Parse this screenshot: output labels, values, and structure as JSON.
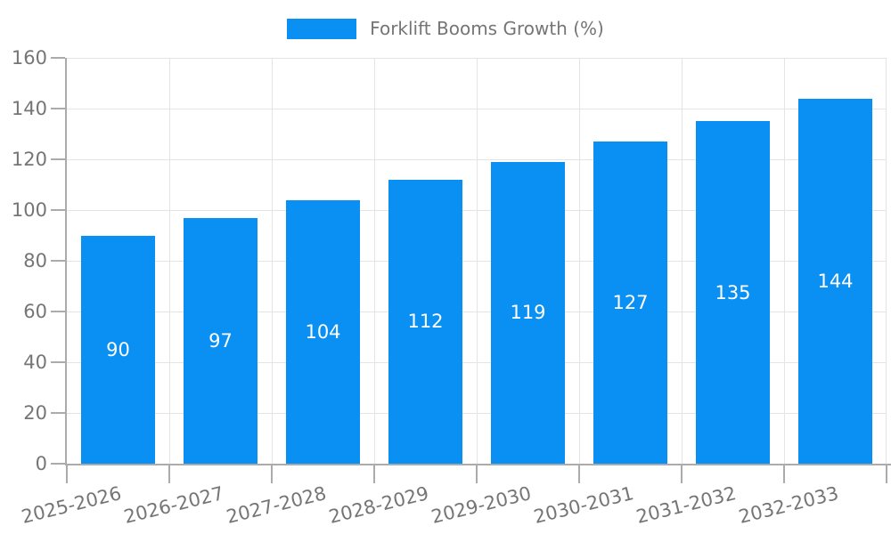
{
  "chart_data": {
    "type": "bar",
    "title": "",
    "legend": {
      "position": "top",
      "label": "Forklift Booms Growth (%)"
    },
    "categories": [
      "2025-2026",
      "2026-2027",
      "2027-2028",
      "2028-2029",
      "2029-2030",
      "2030-2031",
      "2031-2032",
      "2032-2033"
    ],
    "series": [
      {
        "name": "Forklift Booms Growth (%)",
        "values": [
          90,
          97,
          104,
          112,
          119,
          127,
          135,
          144
        ]
      }
    ],
    "xlabel": "",
    "ylabel": "",
    "ylim": [
      0,
      160
    ],
    "yticks": [
      0,
      20,
      40,
      60,
      80,
      100,
      120,
      140,
      160
    ],
    "grid": true,
    "value_labels": {
      "show": true,
      "position": "center-inside-bar"
    },
    "x_label_rotation_deg": -14,
    "colors": {
      "bar": "#0A8FF2",
      "bar_value_label": "#FFFFFF",
      "axis_line": "#ABABAB",
      "gridline": "#E4E4E4",
      "tick_label": "#757575",
      "legend_label": "#757575",
      "background": "#FFFFFF"
    }
  }
}
